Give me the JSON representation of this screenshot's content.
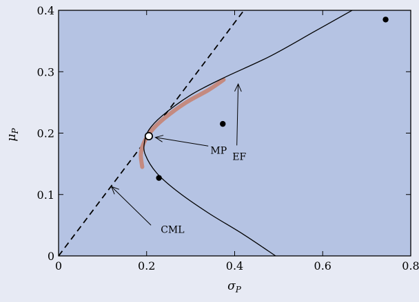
{
  "chart_data": {
    "type": "scatter",
    "title": "",
    "xlabel": "σ",
    "xlabel_sub": "P",
    "ylabel": "μ",
    "ylabel_sub": "P",
    "xlim": [
      0,
      0.8
    ],
    "ylim": [
      0,
      0.4
    ],
    "x_ticks": [
      "0",
      "0.2",
      "0.4",
      "0.6",
      "0.8"
    ],
    "x_tick_values": [
      0,
      0.2,
      0.4,
      0.6,
      0.8
    ],
    "y_ticks": [
      "0",
      "0.1",
      "0.2",
      "0.3",
      "0.4"
    ],
    "y_tick_values": [
      0,
      0.1,
      0.2,
      0.3,
      0.4
    ],
    "grid": false,
    "colors": {
      "plot_background": "#b5c3e3",
      "figure_background": "#e7eaf4",
      "frontier_line": "#000000",
      "efficient_highlight": "#c48a80",
      "cml_line": "#000000"
    },
    "frontier": {
      "description_points": [
        {
          "x": 0.493,
          "y": 0.0
        },
        {
          "x": 0.42,
          "y": 0.035
        },
        {
          "x": 0.34,
          "y": 0.07
        },
        {
          "x": 0.27,
          "y": 0.105
        },
        {
          "x": 0.223,
          "y": 0.135
        },
        {
          "x": 0.197,
          "y": 0.165
        },
        {
          "x": 0.195,
          "y": 0.185
        },
        {
          "x": 0.205,
          "y": 0.205
        },
        {
          "x": 0.235,
          "y": 0.228
        },
        {
          "x": 0.3,
          "y": 0.262
        },
        {
          "x": 0.375,
          "y": 0.29
        },
        {
          "x": 0.48,
          "y": 0.325
        },
        {
          "x": 0.58,
          "y": 0.365
        },
        {
          "x": 0.667,
          "y": 0.4
        }
      ],
      "highlight_points": [
        {
          "x": 0.19,
          "y": 0.145
        },
        {
          "x": 0.187,
          "y": 0.165
        },
        {
          "x": 0.193,
          "y": 0.183
        },
        {
          "x": 0.21,
          "y": 0.203
        },
        {
          "x": 0.24,
          "y": 0.224
        },
        {
          "x": 0.29,
          "y": 0.25
        },
        {
          "x": 0.34,
          "y": 0.27
        },
        {
          "x": 0.375,
          "y": 0.287
        }
      ]
    },
    "cml": {
      "x0": 0.0,
      "y0": 0.0,
      "slope": 0.95
    },
    "market_portfolio": {
      "x": 0.205,
      "y": 0.195
    },
    "assets": [
      {
        "x": 0.228,
        "y": 0.127
      },
      {
        "x": 0.373,
        "y": 0.215
      },
      {
        "x": 0.743,
        "y": 0.385
      }
    ],
    "annotations": [
      {
        "text": "EF",
        "text_x": 0.395,
        "text_y": 0.162,
        "arrow_from_x": 0.405,
        "arrow_from_y": 0.18,
        "arrow_to_x": 0.408,
        "arrow_to_y": 0.28
      },
      {
        "text": "MP",
        "text_x": 0.345,
        "text_y": 0.172,
        "arrow_from_x": 0.34,
        "arrow_from_y": 0.179,
        "arrow_to_x": 0.22,
        "arrow_to_y": 0.193
      },
      {
        "text": "CML",
        "text_x": 0.232,
        "text_y": 0.043,
        "arrow_from_x": 0.21,
        "arrow_from_y": 0.05,
        "arrow_to_x": 0.12,
        "arrow_to_y": 0.113
      }
    ]
  }
}
